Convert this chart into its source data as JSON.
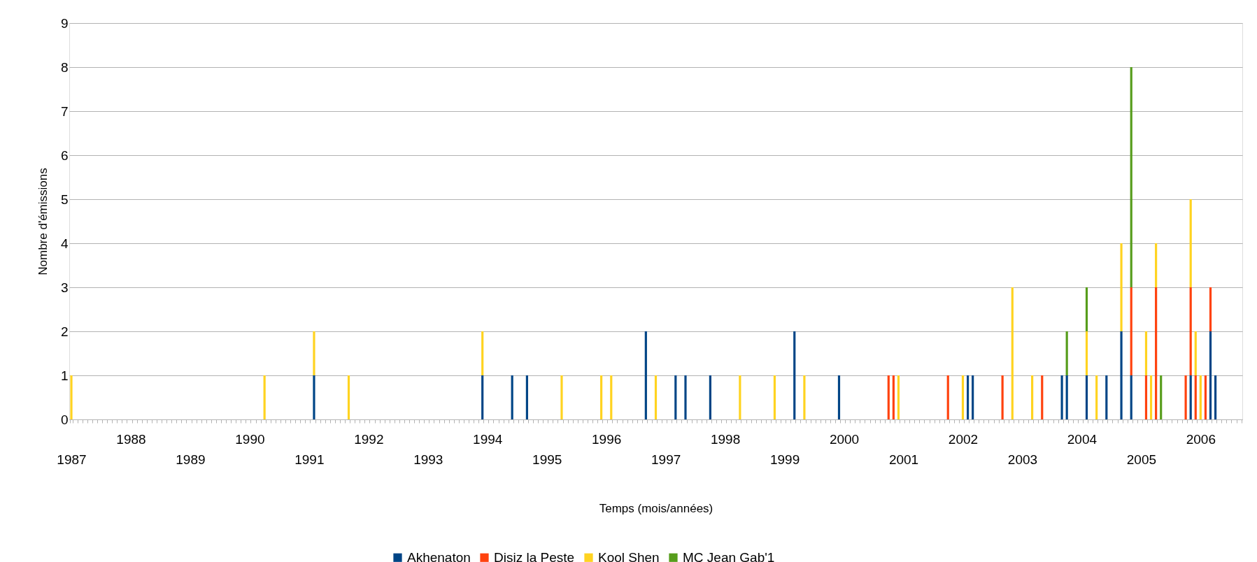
{
  "chart_data": {
    "type": "bar",
    "stacked": true,
    "xlabel": "Temps (mois/années)",
    "ylabel": "Nombre d'émissions",
    "categories": [
      "1987",
      null,
      null,
      null,
      null,
      null,
      null,
      null,
      null,
      null,
      null,
      null,
      "1988",
      null,
      null,
      null,
      null,
      null,
      null,
      null,
      null,
      null,
      null,
      null,
      "1989",
      null,
      null,
      null,
      null,
      null,
      null,
      null,
      null,
      null,
      null,
      null,
      "1990",
      null,
      null,
      null,
      null,
      null,
      null,
      null,
      null,
      null,
      null,
      null,
      "1991",
      null,
      null,
      null,
      null,
      null,
      null,
      null,
      null,
      null,
      null,
      null,
      "1992",
      null,
      null,
      null,
      null,
      null,
      null,
      null,
      null,
      null,
      null,
      null,
      "1993",
      null,
      null,
      null,
      null,
      null,
      null,
      null,
      null,
      null,
      null,
      null,
      "1994",
      null,
      null,
      null,
      null,
      null,
      null,
      null,
      null,
      null,
      null,
      null,
      "1995",
      null,
      null,
      null,
      null,
      null,
      null,
      null,
      null,
      null,
      null,
      null,
      "1996",
      null,
      null,
      null,
      null,
      null,
      null,
      null,
      null,
      null,
      null,
      null,
      "1997",
      null,
      null,
      null,
      null,
      null,
      null,
      null,
      null,
      null,
      null,
      null,
      "1998",
      null,
      null,
      null,
      null,
      null,
      null,
      null,
      null,
      null,
      null,
      null,
      "1999",
      null,
      null,
      null,
      null,
      null,
      null,
      null,
      null,
      null,
      null,
      null,
      "2000",
      null,
      null,
      null,
      null,
      null,
      null,
      null,
      null,
      null,
      null,
      null,
      "2001",
      null,
      null,
      null,
      null,
      null,
      null,
      null,
      null,
      null,
      null,
      null,
      "2002",
      null,
      null,
      null,
      null,
      null,
      null,
      null,
      null,
      null,
      null,
      null,
      "2003",
      null,
      null,
      null,
      null,
      null,
      null,
      null,
      null,
      null,
      null,
      null,
      "2004",
      null,
      null,
      null,
      null,
      null,
      null,
      null,
      null,
      null,
      null,
      null,
      "2005",
      null,
      null,
      null,
      null,
      null,
      null,
      null,
      null,
      null,
      null,
      null,
      "2006",
      null,
      null,
      null,
      null,
      null,
      null,
      null,
      null
    ],
    "series": [
      {
        "name": "Akhenaton",
        "color": "#004586",
        "values": [
          0,
          0,
          0,
          0,
          0,
          0,
          0,
          0,
          0,
          0,
          0,
          0,
          0,
          0,
          0,
          0,
          0,
          0,
          0,
          0,
          0,
          0,
          0,
          0,
          0,
          0,
          0,
          0,
          0,
          0,
          0,
          0,
          0,
          0,
          0,
          0,
          0,
          0,
          0,
          0,
          0,
          0,
          0,
          0,
          0,
          0,
          0,
          0,
          0,
          1,
          0,
          0,
          0,
          0,
          0,
          0,
          0,
          0,
          0,
          0,
          0,
          0,
          0,
          0,
          0,
          0,
          0,
          0,
          0,
          0,
          0,
          0,
          0,
          0,
          0,
          0,
          0,
          0,
          0,
          0,
          0,
          0,
          0,
          1,
          0,
          0,
          0,
          0,
          0,
          1,
          0,
          0,
          1,
          0,
          0,
          0,
          0,
          0,
          0,
          0,
          0,
          0,
          0,
          0,
          0,
          0,
          0,
          0,
          0,
          0,
          0,
          0,
          0,
          0,
          0,
          0,
          2,
          0,
          0,
          0,
          0,
          0,
          1,
          0,
          1,
          0,
          0,
          0,
          0,
          1,
          0,
          0,
          0,
          0,
          0,
          0,
          0,
          0,
          0,
          0,
          0,
          0,
          0,
          0,
          0,
          0,
          2,
          0,
          0,
          0,
          0,
          0,
          0,
          0,
          0,
          1,
          0,
          0,
          0,
          0,
          0,
          0,
          0,
          0,
          0,
          0,
          0,
          0,
          0,
          0,
          0,
          0,
          0,
          0,
          0,
          0,
          0,
          0,
          0,
          0,
          0,
          1,
          1,
          0,
          0,
          0,
          0,
          0,
          0,
          0,
          0,
          0,
          0,
          0,
          0,
          0,
          0,
          0,
          0,
          0,
          1,
          1,
          0,
          0,
          0,
          1,
          0,
          0,
          0,
          1,
          0,
          0,
          2,
          0,
          1,
          0,
          0,
          0,
          0,
          0,
          0,
          0,
          0,
          0,
          0,
          0,
          1,
          0,
          0,
          0,
          2,
          1,
          0,
          0,
          0,
          0,
          0
        ]
      },
      {
        "name": "Disiz la Peste",
        "color": "#ff420e",
        "values": [
          0,
          0,
          0,
          0,
          0,
          0,
          0,
          0,
          0,
          0,
          0,
          0,
          0,
          0,
          0,
          0,
          0,
          0,
          0,
          0,
          0,
          0,
          0,
          0,
          0,
          0,
          0,
          0,
          0,
          0,
          0,
          0,
          0,
          0,
          0,
          0,
          0,
          0,
          0,
          0,
          0,
          0,
          0,
          0,
          0,
          0,
          0,
          0,
          0,
          0,
          0,
          0,
          0,
          0,
          0,
          0,
          0,
          0,
          0,
          0,
          0,
          0,
          0,
          0,
          0,
          0,
          0,
          0,
          0,
          0,
          0,
          0,
          0,
          0,
          0,
          0,
          0,
          0,
          0,
          0,
          0,
          0,
          0,
          0,
          0,
          0,
          0,
          0,
          0,
          0,
          0,
          0,
          0,
          0,
          0,
          0,
          0,
          0,
          0,
          0,
          0,
          0,
          0,
          0,
          0,
          0,
          0,
          0,
          0,
          0,
          0,
          0,
          0,
          0,
          0,
          0,
          0,
          0,
          0,
          0,
          0,
          0,
          0,
          0,
          0,
          0,
          0,
          0,
          0,
          0,
          0,
          0,
          0,
          0,
          0,
          0,
          0,
          0,
          0,
          0,
          0,
          0,
          0,
          0,
          0,
          0,
          0,
          0,
          0,
          0,
          0,
          0,
          0,
          0,
          0,
          0,
          0,
          0,
          0,
          0,
          0,
          0,
          0,
          0,
          0,
          1,
          1,
          0,
          0,
          0,
          0,
          0,
          0,
          0,
          0,
          0,
          0,
          1,
          0,
          0,
          0,
          0,
          0,
          0,
          0,
          0,
          0,
          0,
          1,
          0,
          0,
          0,
          0,
          0,
          0,
          0,
          1,
          0,
          0,
          0,
          0,
          0,
          0,
          0,
          0,
          0,
          0,
          0,
          0,
          0,
          0,
          0,
          0,
          0,
          2,
          0,
          0,
          1,
          0,
          3,
          0,
          0,
          0,
          0,
          0,
          1,
          2,
          1,
          0,
          1,
          1,
          0,
          0,
          0,
          0,
          0,
          0
        ]
      },
      {
        "name": "Kool Shen",
        "color": "#ffd320",
        "values": [
          1,
          0,
          0,
          0,
          0,
          0,
          0,
          0,
          0,
          0,
          0,
          0,
          0,
          0,
          0,
          0,
          0,
          0,
          0,
          0,
          0,
          0,
          0,
          0,
          0,
          0,
          0,
          0,
          0,
          0,
          0,
          0,
          0,
          0,
          0,
          0,
          0,
          0,
          0,
          1,
          0,
          0,
          0,
          0,
          0,
          0,
          0,
          0,
          0,
          1,
          0,
          0,
          0,
          0,
          0,
          0,
          1,
          0,
          0,
          0,
          0,
          0,
          0,
          0,
          0,
          0,
          0,
          0,
          0,
          0,
          0,
          0,
          0,
          0,
          0,
          0,
          0,
          0,
          0,
          0,
          0,
          0,
          0,
          1,
          0,
          0,
          0,
          0,
          0,
          0,
          0,
          0,
          0,
          0,
          0,
          0,
          0,
          0,
          0,
          1,
          0,
          0,
          0,
          0,
          0,
          0,
          0,
          1,
          0,
          1,
          0,
          0,
          0,
          0,
          0,
          0,
          0,
          0,
          1,
          0,
          0,
          0,
          0,
          0,
          0,
          0,
          0,
          0,
          0,
          0,
          0,
          0,
          0,
          0,
          0,
          1,
          0,
          0,
          0,
          0,
          0,
          0,
          1,
          0,
          0,
          0,
          0,
          0,
          1,
          0,
          0,
          0,
          0,
          0,
          0,
          0,
          0,
          0,
          0,
          0,
          0,
          0,
          0,
          0,
          0,
          0,
          0,
          1,
          0,
          0,
          0,
          0,
          0,
          0,
          0,
          0,
          0,
          0,
          0,
          0,
          1,
          0,
          0,
          0,
          0,
          0,
          0,
          0,
          0,
          0,
          3,
          0,
          0,
          0,
          1,
          0,
          0,
          0,
          0,
          0,
          0,
          0,
          0,
          0,
          0,
          1,
          0,
          1,
          0,
          0,
          0,
          0,
          2,
          0,
          0,
          0,
          0,
          1,
          1,
          1,
          0,
          0,
          0,
          0,
          0,
          0,
          2,
          1,
          1,
          0,
          0,
          0,
          0,
          0,
          0,
          0,
          0
        ]
      },
      {
        "name": "MC Jean Gab'1",
        "color": "#579d1c",
        "values": [
          0,
          0,
          0,
          0,
          0,
          0,
          0,
          0,
          0,
          0,
          0,
          0,
          0,
          0,
          0,
          0,
          0,
          0,
          0,
          0,
          0,
          0,
          0,
          0,
          0,
          0,
          0,
          0,
          0,
          0,
          0,
          0,
          0,
          0,
          0,
          0,
          0,
          0,
          0,
          0,
          0,
          0,
          0,
          0,
          0,
          0,
          0,
          0,
          0,
          0,
          0,
          0,
          0,
          0,
          0,
          0,
          0,
          0,
          0,
          0,
          0,
          0,
          0,
          0,
          0,
          0,
          0,
          0,
          0,
          0,
          0,
          0,
          0,
          0,
          0,
          0,
          0,
          0,
          0,
          0,
          0,
          0,
          0,
          0,
          0,
          0,
          0,
          0,
          0,
          0,
          0,
          0,
          0,
          0,
          0,
          0,
          0,
          0,
          0,
          0,
          0,
          0,
          0,
          0,
          0,
          0,
          0,
          0,
          0,
          0,
          0,
          0,
          0,
          0,
          0,
          0,
          0,
          0,
          0,
          0,
          0,
          0,
          0,
          0,
          0,
          0,
          0,
          0,
          0,
          0,
          0,
          0,
          0,
          0,
          0,
          0,
          0,
          0,
          0,
          0,
          0,
          0,
          0,
          0,
          0,
          0,
          0,
          0,
          0,
          0,
          0,
          0,
          0,
          0,
          0,
          0,
          0,
          0,
          0,
          0,
          0,
          0,
          0,
          0,
          0,
          0,
          0,
          0,
          0,
          0,
          0,
          0,
          0,
          0,
          0,
          0,
          0,
          0,
          0,
          0,
          0,
          0,
          0,
          0,
          0,
          0,
          0,
          0,
          0,
          0,
          0,
          0,
          0,
          0,
          0,
          0,
          0,
          0,
          0,
          0,
          0,
          1,
          0,
          0,
          0,
          1,
          0,
          0,
          0,
          0,
          0,
          0,
          0,
          0,
          5,
          0,
          0,
          0,
          0,
          0,
          1,
          0,
          0,
          0,
          0,
          0,
          0,
          0,
          0,
          0,
          0,
          0,
          0,
          0,
          0,
          0,
          0
        ]
      }
    ],
    "ylim": [
      0,
      9
    ],
    "yticks": [
      0,
      1,
      2,
      3,
      4,
      5,
      6,
      7,
      8,
      9
    ],
    "grid": "y",
    "legend": "bottom"
  }
}
